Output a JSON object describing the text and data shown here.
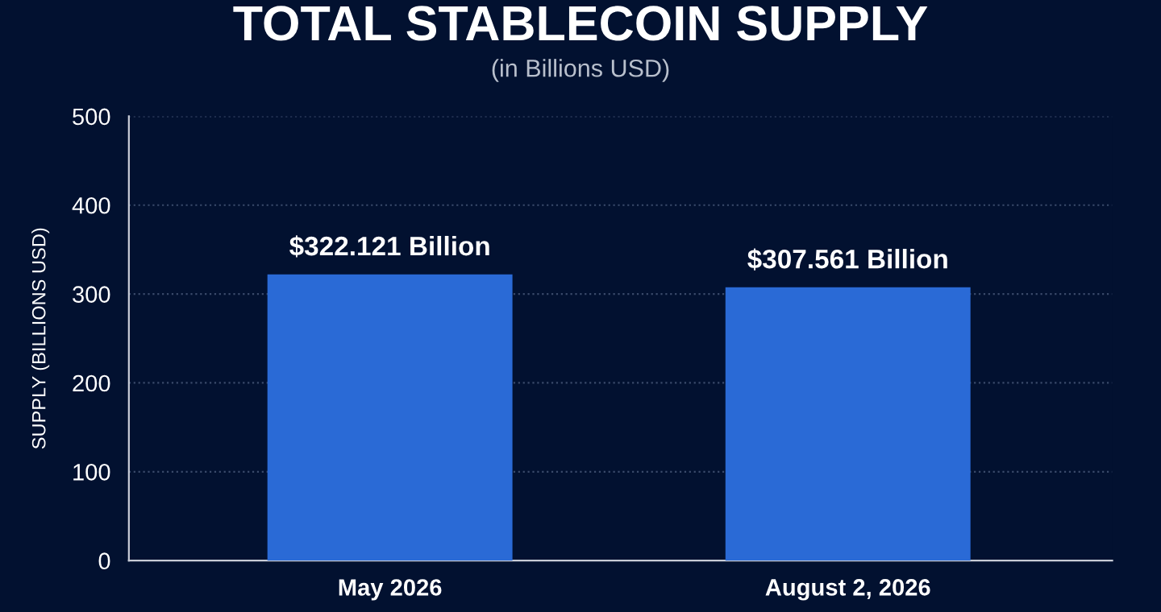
{
  "chart_data": {
    "type": "bar",
    "title": "TOTAL STABLECOIN SUPPLY",
    "subtitle": "(in Billions USD)",
    "ylabel": "SUPPLY (BILLIONS USD)",
    "categories": [
      "May 2026",
      "August 2, 2026"
    ],
    "values": [
      322.121,
      307.561
    ],
    "value_labels": [
      "$322.121 Billion",
      "$307.561 Billion"
    ],
    "color": "#2a6ad6",
    "ylim": [
      0,
      500
    ],
    "yticks": [
      0,
      100,
      200,
      300,
      400,
      500
    ],
    "grid": "y",
    "legend": false
  }
}
